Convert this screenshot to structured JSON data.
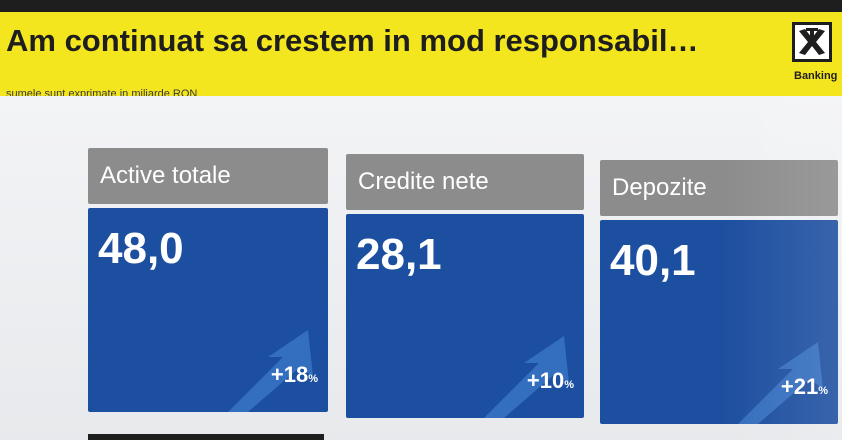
{
  "header": {
    "title": "Am continuat sa crestem in mod responsabil…",
    "subtitle": "sumele sunt exprimate in miliarde RON",
    "brand": "Banking",
    "logo_icon": "raiffeisen-cross-icon"
  },
  "cards": [
    {
      "label": "Active totale",
      "value": "48,0",
      "change": "+18",
      "unit": "%"
    },
    {
      "label": "Credite nete",
      "value": "28,1",
      "change": "+10",
      "unit": "%"
    },
    {
      "label": "Depozite",
      "value": "40,1",
      "change": "+21",
      "unit": "%"
    }
  ],
  "colors": {
    "header_yellow": "#f4e61e",
    "card_header_gray": "#8c8c8c",
    "card_body_blue": "#1d4fa0",
    "arrow_blue": "#3c78c8"
  }
}
